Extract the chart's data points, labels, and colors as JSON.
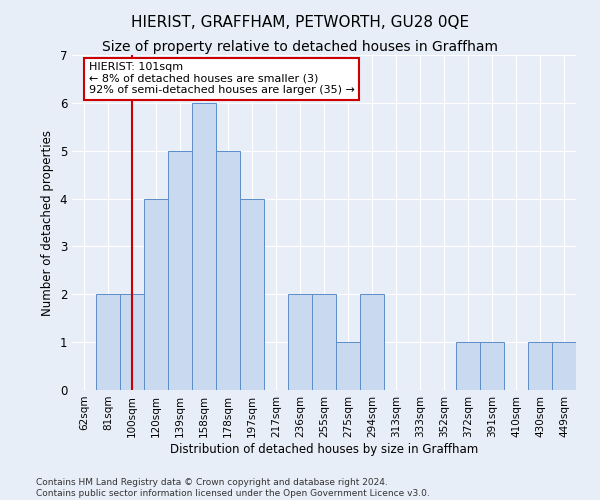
{
  "title": "HIERIST, GRAFFHAM, PETWORTH, GU28 0QE",
  "subtitle": "Size of property relative to detached houses in Graffham",
  "xlabel": "Distribution of detached houses by size in Graffham",
  "ylabel": "Number of detached properties",
  "categories": [
    "62sqm",
    "81sqm",
    "100sqm",
    "120sqm",
    "139sqm",
    "158sqm",
    "178sqm",
    "197sqm",
    "217sqm",
    "236sqm",
    "255sqm",
    "275sqm",
    "294sqm",
    "313sqm",
    "333sqm",
    "352sqm",
    "372sqm",
    "391sqm",
    "410sqm",
    "430sqm",
    "449sqm"
  ],
  "values": [
    0,
    2,
    2,
    4,
    5,
    6,
    5,
    4,
    0,
    2,
    2,
    1,
    2,
    0,
    0,
    0,
    1,
    1,
    0,
    1,
    1
  ],
  "bar_color": "#c9d9f0",
  "bar_edge_color": "#5b8dc8",
  "ylim": [
    0,
    7
  ],
  "yticks": [
    0,
    1,
    2,
    3,
    4,
    5,
    6,
    7
  ],
  "annotation_text": "HIERIST: 101sqm\n← 8% of detached houses are smaller (3)\n92% of semi-detached houses are larger (35) →",
  "annotation_box_color": "#ffffff",
  "annotation_box_edge": "#cc0000",
  "red_line_x": 2,
  "footer_line1": "Contains HM Land Registry data © Crown copyright and database right 2024.",
  "footer_line2": "Contains public sector information licensed under the Open Government Licence v3.0.",
  "background_color": "#e8eef8",
  "plot_bg_color": "#e8eef8",
  "grid_color": "#ffffff",
  "title_fontsize": 11,
  "subtitle_fontsize": 10,
  "axis_label_fontsize": 8.5,
  "tick_fontsize": 7.5,
  "annotation_fontsize": 8,
  "footer_fontsize": 6.5
}
